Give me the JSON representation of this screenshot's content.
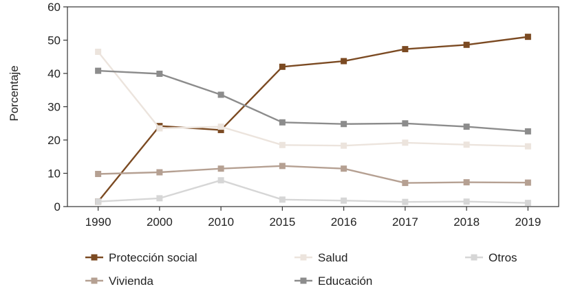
{
  "chart_data": {
    "type": "line",
    "title": "",
    "xlabel": "",
    "ylabel": "Porcentaje",
    "categories": [
      "1990",
      "2000",
      "2010",
      "2015",
      "2016",
      "2017",
      "2018",
      "2019"
    ],
    "ylim": [
      0,
      60
    ],
    "yticks": [
      0,
      10,
      20,
      30,
      40,
      50,
      60
    ],
    "grid": false,
    "legend_position": "bottom",
    "series": [
      {
        "name": "Protección social",
        "color": "#7b4a22",
        "values": [
          1.5,
          24.2,
          23.0,
          42.0,
          43.7,
          47.3,
          48.6,
          51.0
        ]
      },
      {
        "name": "Salud",
        "color": "#ece4dd",
        "values": [
          46.5,
          23.5,
          24.0,
          18.5,
          18.3,
          19.2,
          18.6,
          18.1
        ]
      },
      {
        "name": "Otros",
        "color": "#d6d6d6",
        "values": [
          1.5,
          2.5,
          7.9,
          2.1,
          1.8,
          1.4,
          1.5,
          1.1
        ]
      },
      {
        "name": "Vivienda",
        "color": "#b5a092",
        "values": [
          9.8,
          10.3,
          11.4,
          12.2,
          11.4,
          7.1,
          7.3,
          7.2
        ]
      },
      {
        "name": "Educación",
        "color": "#8c8c8c",
        "values": [
          40.8,
          39.9,
          33.6,
          25.3,
          24.8,
          25.0,
          24.0,
          22.6
        ]
      }
    ]
  }
}
